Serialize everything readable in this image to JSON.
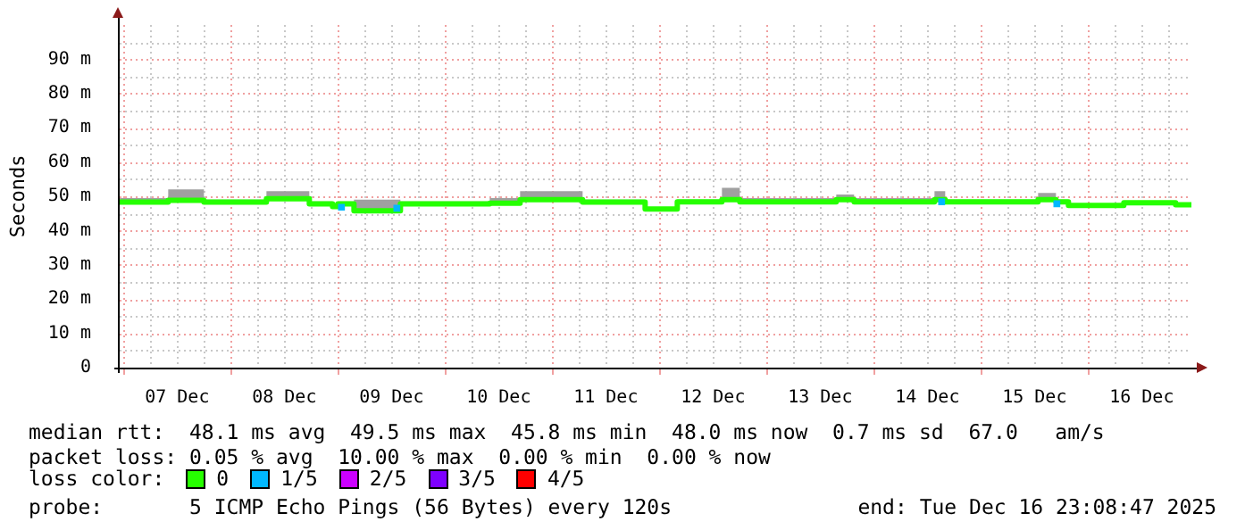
{
  "chart_data": {
    "type": "step",
    "ylabel": "Seconds",
    "legend_title": "loss color:",
    "legend": "bottom",
    "grid": true,
    "xlim": [
      "2025-12-06T23:08",
      "2025-12-16T23:08"
    ],
    "xticks": [
      {
        "value": "2025-12-07T00:00",
        "label": null
      },
      {
        "value": "2025-12-07T12:00",
        "label": "07 Dec"
      },
      {
        "value": "2025-12-08T00:00",
        "label": null
      },
      {
        "value": "2025-12-08T12:00",
        "label": "08 Dec"
      },
      {
        "value": "2025-12-09T00:00",
        "label": null
      },
      {
        "value": "2025-12-09T12:00",
        "label": "09 Dec"
      },
      {
        "value": "2025-12-10T00:00",
        "label": null
      },
      {
        "value": "2025-12-10T12:00",
        "label": "10 Dec"
      },
      {
        "value": "2025-12-11T00:00",
        "label": null
      },
      {
        "value": "2025-12-11T12:00",
        "label": "11 Dec"
      },
      {
        "value": "2025-12-12T00:00",
        "label": null
      },
      {
        "value": "2025-12-12T12:00",
        "label": "12 Dec"
      },
      {
        "value": "2025-12-13T00:00",
        "label": null
      },
      {
        "value": "2025-12-13T12:00",
        "label": "13 Dec"
      },
      {
        "value": "2025-12-14T00:00",
        "label": null
      },
      {
        "value": "2025-12-14T12:00",
        "label": "14 Dec"
      },
      {
        "value": "2025-12-15T00:00",
        "label": null
      },
      {
        "value": "2025-12-15T12:00",
        "label": "15 Dec"
      },
      {
        "value": "2025-12-16T00:00",
        "label": null
      },
      {
        "value": "2025-12-16T12:00",
        "label": "16 Dec"
      }
    ],
    "ylim": [
      0,
      100
    ],
    "yticks": [
      0,
      {
        "value": 10,
        "label": "10 m"
      },
      {
        "value": 20,
        "label": "20 m"
      },
      {
        "value": 30,
        "label": "30 m"
      },
      {
        "value": 40,
        "label": "40 m"
      },
      {
        "value": 50,
        "label": "50 m"
      },
      {
        "value": 60,
        "label": "60 m"
      },
      {
        "value": 70,
        "label": "70 m"
      },
      {
        "value": 80,
        "label": "80 m"
      },
      {
        "value": 90,
        "label": "90 m"
      }
    ],
    "series": [
      {
        "name": "0",
        "color": "#26ff00",
        "x": [
          "2025-12-06T23:08",
          "2025-12-07T10:00",
          "2025-12-07T18:00",
          "2025-12-08T08:00",
          "2025-12-08T17:36",
          "2025-12-08T22:48",
          "2025-12-09T00:00",
          "2025-12-09T03:36",
          "2025-12-09T14:00",
          "2025-12-10T10:00",
          "2025-12-10T16:48",
          "2025-12-11T06:48",
          "2025-12-11T20:48",
          "2025-12-12T04:00",
          "2025-12-12T14:00",
          "2025-12-12T18:00",
          "2025-12-13T15:36",
          "2025-12-13T19:36",
          "2025-12-14T13:36",
          "2025-12-14T16:00",
          "2025-12-15T12:48",
          "2025-12-15T16:48",
          "2025-12-15T19:36",
          "2025-12-16T08:00",
          "2025-12-16T19:36",
          "2025-12-16T23:08"
        ],
        "values": [
          48.3,
          48.8,
          48.3,
          49.3,
          47.8,
          47,
          47.8,
          45.8,
          47.8,
          48,
          49,
          48.3,
          46.3,
          48.4,
          49,
          48.4,
          49,
          48.4,
          49,
          48.4,
          49,
          48.4,
          47.3,
          48.1,
          47.5,
          47.5
        ],
        "lower": [
          48,
          48.5,
          48,
          49,
          47.5,
          46.7,
          47.5,
          45.5,
          47.5,
          47.7,
          48.7,
          48,
          46,
          48.1,
          48.7,
          48.1,
          48.7,
          48.1,
          48.7,
          48.1,
          48.7,
          48.1,
          47,
          47.8,
          47.2,
          47.2
        ],
        "upper": [
          49.5,
          52,
          49,
          51.5,
          48.5,
          48,
          48.5,
          49,
          48.5,
          49.5,
          51.5,
          49,
          46.5,
          49,
          52.5,
          49.5,
          50.5,
          49.5,
          51.5,
          49,
          51,
          49,
          47.8,
          48.5,
          48,
          48
        ]
      },
      {
        "name": "1/5",
        "type": "scatter",
        "marker": "square",
        "color": "#00b8ff",
        "x": [
          "2025-12-09T00:48",
          "2025-12-09T13:12",
          "2025-12-14T15:12",
          "2025-12-15T17:00"
        ],
        "values": [
          46.8,
          46.5,
          48.4,
          47.8
        ]
      },
      {
        "name": "2/5",
        "type": "scatter",
        "marker": "square",
        "color": "#cc00ff"
      },
      {
        "name": "3/5",
        "type": "scatter",
        "marker": "square",
        "color": "#7e00ff"
      },
      {
        "name": "4/5",
        "type": "scatter",
        "marker": "square",
        "color": "#ff0000"
      }
    ],
    "annotations": [
      "median rtt:  48.1 ms avg  49.5 ms max  45.8 ms min  48.0 ms now  0.7 ms sd  67.0   am/s",
      "packet loss: 0.05 % avg  10.00 % max  0.00 % min  0.00 % now",
      "probe:       5 ICMP Echo Pings (56 Bytes) every 120s",
      "end: Tue Dec 16 23:08:47 2025"
    ]
  }
}
